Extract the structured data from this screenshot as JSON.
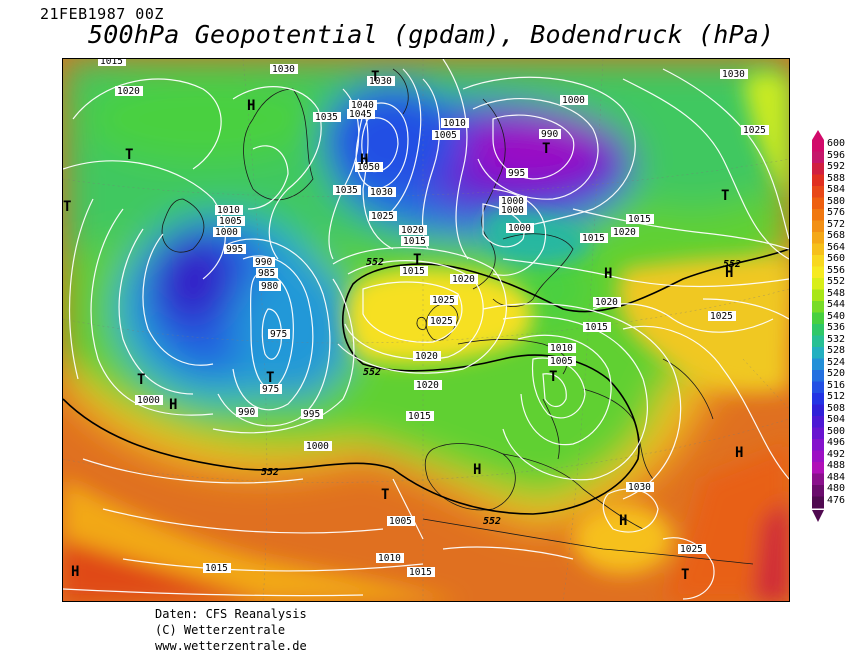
{
  "header": {
    "datetime": "21FEB1987 00Z",
    "title": "500hPa Geopotential (gpdam), Bodendruck (hPa)"
  },
  "footer": {
    "line1": "Daten: CFS Reanalysis",
    "line2": "(C) Wetterzentrale",
    "line3": "www.wetterzentrale.de"
  },
  "legend": {
    "values": [
      "600",
      "596",
      "592",
      "588",
      "584",
      "580",
      "576",
      "572",
      "568",
      "564",
      "560",
      "556",
      "552",
      "548",
      "544",
      "540",
      "536",
      "532",
      "528",
      "524",
      "520",
      "516",
      "512",
      "508",
      "504",
      "500",
      "496",
      "492",
      "488",
      "484",
      "480",
      "476"
    ],
    "colors": [
      "#d10a6a",
      "#c5186b",
      "#d02040",
      "#e03020",
      "#e84818",
      "#ee6010",
      "#f07810",
      "#f29015",
      "#f4a818",
      "#f6c01c",
      "#f8d820",
      "#f6ea22",
      "#d8ee1a",
      "#a8e618",
      "#78dc28",
      "#48d040",
      "#30c868",
      "#28c094",
      "#24b0c0",
      "#2490d8",
      "#2470e0",
      "#2450e4",
      "#2434e4",
      "#3020d8",
      "#4c18d4",
      "#6814d0",
      "#8412cc",
      "#9c10c4",
      "#b010b8",
      "#8a108c",
      "#6a0c6c",
      "#500a50"
    ]
  },
  "map": {
    "contour_552_label": "552",
    "pressure_labels": [
      "1015",
      "1020",
      "1030",
      "1030",
      "1040",
      "1045",
      "1050",
      "1035",
      "1035",
      "1030",
      "1025",
      "1010",
      "1005",
      "1000",
      "990",
      "995",
      "1000",
      "1000",
      "1010",
      "1005",
      "1000",
      "995",
      "985",
      "990",
      "980",
      "975",
      "975",
      "990",
      "995",
      "1000",
      "1000",
      "1015",
      "1020",
      "1020",
      "1025",
      "1025",
      "1025",
      "1015",
      "1020",
      "1015",
      "1015",
      "1010",
      "1005",
      "1020",
      "1015",
      "1020",
      "1005",
      "1010",
      "1015",
      "1015",
      "1030",
      "1025",
      "1030",
      "1025",
      "1020",
      "1015",
      "1000"
    ],
    "centers": [
      {
        "type": "H"
      },
      {
        "type": "T"
      },
      {
        "type": "H"
      },
      {
        "type": "T"
      },
      {
        "type": "T"
      },
      {
        "type": "T"
      },
      {
        "type": "T"
      },
      {
        "type": "H"
      },
      {
        "type": "T"
      },
      {
        "type": "T"
      },
      {
        "type": "H"
      },
      {
        "type": "T"
      },
      {
        "type": "T"
      },
      {
        "type": "H"
      },
      {
        "type": "H"
      },
      {
        "type": "H"
      },
      {
        "type": "T"
      },
      {
        "type": "H"
      },
      {
        "type": "T"
      },
      {
        "type": "H"
      },
      {
        "type": "H"
      },
      {
        "type": "T"
      },
      {
        "type": "H"
      }
    ]
  }
}
